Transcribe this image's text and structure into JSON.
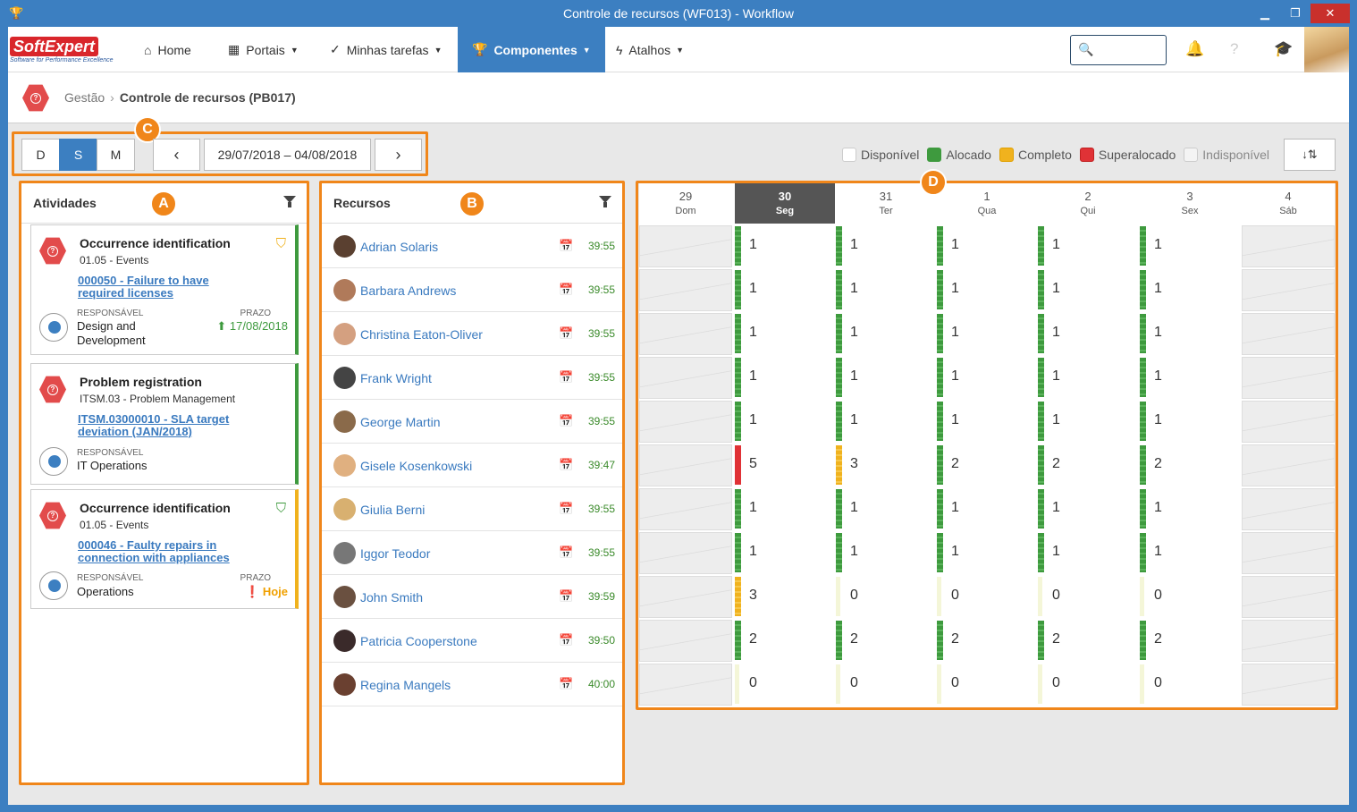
{
  "window": {
    "title": "Controle de recursos (WF013) - Workflow"
  },
  "logo": {
    "text1": "Soft",
    "text2": "Expert",
    "tagline": "Software for Performance Excellence"
  },
  "nav": {
    "home": "Home",
    "portais": "Portais",
    "tarefas": "Minhas tarefas",
    "componentes": "Componentes",
    "atalhos": "Atalhos",
    "search_placeholder": ""
  },
  "breadcrumb": {
    "parent": "Gestão",
    "current": "Controle de recursos (PB017)"
  },
  "callouts": {
    "a": "A",
    "b": "B",
    "c": "C",
    "d": "D"
  },
  "view_modes": [
    "D",
    "S",
    "M"
  ],
  "date_range": "29/07/2018 – 04/08/2018",
  "legend": {
    "disponivel": "Disponível",
    "alocado": "Alocado",
    "completo": "Completo",
    "superalocado": "Superalocado",
    "indisponivel": "Indisponível"
  },
  "colors": {
    "accent": "#3c7fc1",
    "alocado": "#3e9a3e",
    "completo": "#f0b21e",
    "superalocado": "#e03236",
    "highlight": "#f0861a"
  },
  "atividades": {
    "title": "Atividades",
    "cards": [
      {
        "title": "Occurrence identification",
        "sub": "01.05 - Events",
        "link1": "000050 - Failure to have",
        "link2": "required licenses",
        "resp_label": "RESPONSÁVEL",
        "resp1": "Design and",
        "resp2": "Development",
        "prazo_label": "PRAZO",
        "prazo": "17/08/2018"
      },
      {
        "title": "Problem registration",
        "sub": "ITSM.03 - Problem Management",
        "link1": "ITSM.03000010 - SLA target",
        "link2": "deviation (JAN/2018)",
        "resp_label": "RESPONSÁVEL",
        "resp1": "IT Operations"
      },
      {
        "title": "Occurrence identification",
        "sub": "01.05 - Events",
        "link1": "000046 - Faulty repairs in",
        "link2": "connection with appliances",
        "resp_label": "RESPONSÁVEL",
        "resp1": "Operations",
        "prazo_label": "PRAZO",
        "prazo": "Hoje"
      }
    ]
  },
  "recursos": {
    "title": "Recursos",
    "rows": [
      {
        "name": "Adrian Solaris",
        "hours": "39:55"
      },
      {
        "name": "Barbara Andrews",
        "hours": "39:55"
      },
      {
        "name": "Christina Eaton-Oliver",
        "hours": "39:55"
      },
      {
        "name": "Frank Wright",
        "hours": "39:55"
      },
      {
        "name": "George Martin",
        "hours": "39:55"
      },
      {
        "name": "Gisele Kosenkowski",
        "hours": "39:47"
      },
      {
        "name": "Giulia Berni",
        "hours": "39:55"
      },
      {
        "name": "Iggor Teodor",
        "hours": "39:55"
      },
      {
        "name": "John Smith",
        "hours": "39:59"
      },
      {
        "name": "Patricia Cooperstone",
        "hours": "39:50"
      },
      {
        "name": "Regina Mangels",
        "hours": "40:00"
      }
    ]
  },
  "days": [
    {
      "num": "29",
      "wd": "Dom"
    },
    {
      "num": "30",
      "wd": "Seg"
    },
    {
      "num": "31",
      "wd": "Ter"
    },
    {
      "num": "1",
      "wd": "Qua"
    },
    {
      "num": "2",
      "wd": "Qui"
    },
    {
      "num": "3",
      "wd": "Sex"
    },
    {
      "num": "4",
      "wd": "Sáb"
    }
  ],
  "allocation": [
    [
      "1",
      "1",
      "1",
      "1",
      "1"
    ],
    [
      "1",
      "1",
      "1",
      "1",
      "1"
    ],
    [
      "1",
      "1",
      "1",
      "1",
      "1"
    ],
    [
      "1",
      "1",
      "1",
      "1",
      "1"
    ],
    [
      "1",
      "1",
      "1",
      "1",
      "1"
    ],
    [
      "5",
      "3",
      "2",
      "2",
      "2"
    ],
    [
      "1",
      "1",
      "1",
      "1",
      "1"
    ],
    [
      "1",
      "1",
      "1",
      "1",
      "1"
    ],
    [
      "3",
      "0",
      "0",
      "0",
      "0"
    ],
    [
      "2",
      "2",
      "2",
      "2",
      "2"
    ],
    [
      "0",
      "0",
      "0",
      "0",
      "0"
    ]
  ],
  "allocation_status": [
    [
      "g",
      "g",
      "g",
      "g",
      "g"
    ],
    [
      "g",
      "g",
      "g",
      "g",
      "g"
    ],
    [
      "g",
      "g",
      "g",
      "g",
      "g"
    ],
    [
      "g",
      "g",
      "g",
      "g",
      "g"
    ],
    [
      "g",
      "g",
      "g",
      "g",
      "g"
    ],
    [
      "r",
      "y",
      "g",
      "g",
      "g"
    ],
    [
      "g",
      "g",
      "g",
      "g",
      "g"
    ],
    [
      "g",
      "g",
      "g",
      "g",
      "g"
    ],
    [
      "y",
      "e",
      "e",
      "e",
      "e"
    ],
    [
      "g",
      "g",
      "g",
      "g",
      "g"
    ],
    [
      "e",
      "e",
      "e",
      "e",
      "e"
    ]
  ]
}
